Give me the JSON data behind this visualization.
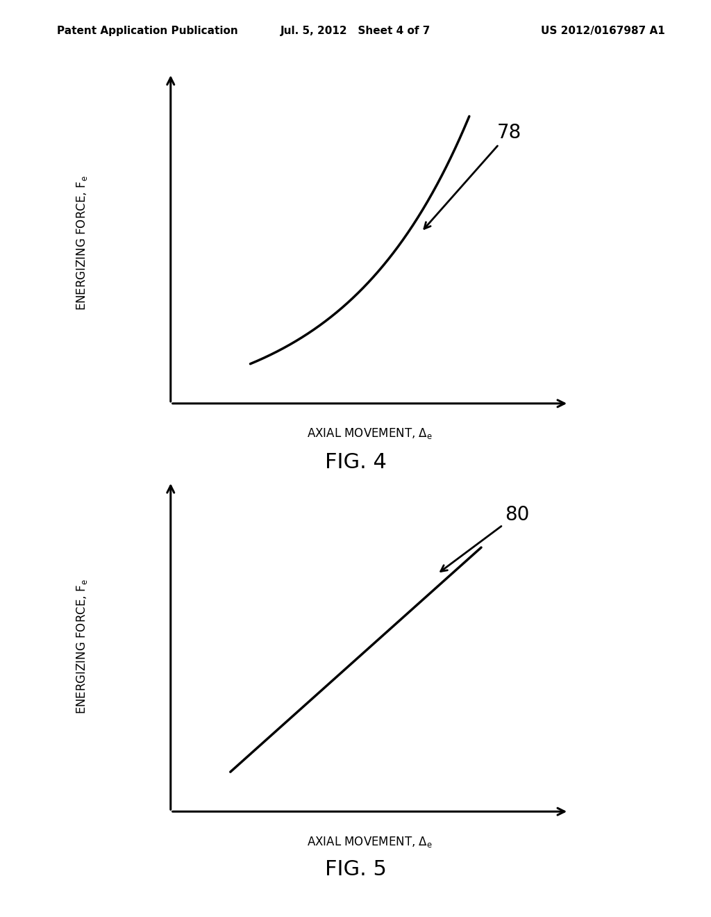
{
  "header_left": "Patent Application Publication",
  "header_center": "Jul. 5, 2012   Sheet 4 of 7",
  "header_right": "US 2012/0167987 A1",
  "fig4_label": "FIG. 4",
  "fig5_label": "FIG. 5",
  "fig4_number": "78",
  "fig5_number": "80",
  "background_color": "#ffffff",
  "line_color": "#000000",
  "text_color": "#000000",
  "header_fontsize": 11,
  "axis_label_fontsize": 12,
  "fig_label_fontsize": 22,
  "fig_number_fontsize": 20,
  "line_width": 2.5
}
